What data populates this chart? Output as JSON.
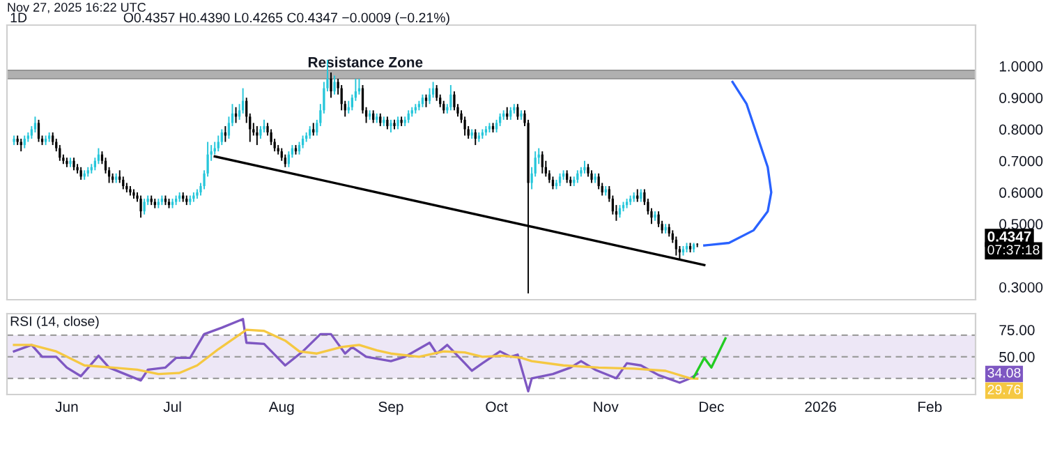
{
  "chart_data": [
    {
      "type": "candlestick",
      "title": "1D",
      "subtitle": "O0.4357 H0.4390 L0.4265 C0.4347 −0.0009 (−0.21%)",
      "annotations": [
        "Nov 27, 2025 16:22 UTC",
        "0.4347",
        "07:37:18"
      ],
      "x": [
        "2025-05-17",
        "2025-05-18",
        "2025-05-19",
        "2025-05-20",
        "2025-05-21",
        "2025-05-22",
        "2025-05-23",
        "2025-05-24",
        "2025-05-25",
        "2025-05-26",
        "2025-05-27",
        "2025-05-28",
        "2025-05-29",
        "2025-05-30",
        "2025-05-31",
        "2025-06-01",
        "2025-06-02",
        "2025-06-03",
        "2025-06-04",
        "2025-06-05",
        "2025-06-06",
        "2025-06-07",
        "2025-06-08",
        "2025-06-09",
        "2025-06-10",
        "2025-06-11",
        "2025-06-12",
        "2025-06-13",
        "2025-06-14",
        "2025-06-15",
        "2025-06-16",
        "2025-06-17",
        "2025-06-18",
        "2025-06-19",
        "2025-06-20",
        "2025-06-21",
        "2025-06-22",
        "2025-06-23",
        "2025-06-24",
        "2025-06-25",
        "2025-06-26",
        "2025-06-27",
        "2025-06-28",
        "2025-06-29",
        "2025-06-30",
        "2025-07-01",
        "2025-07-02",
        "2025-07-03",
        "2025-07-04",
        "2025-07-05",
        "2025-07-06",
        "2025-07-07",
        "2025-07-08",
        "2025-07-09",
        "2025-07-10",
        "2025-07-11",
        "2025-07-12",
        "2025-07-13",
        "2025-07-14",
        "2025-07-15",
        "2025-07-16",
        "2025-07-17",
        "2025-07-18",
        "2025-07-19",
        "2025-07-20",
        "2025-07-21",
        "2025-07-22",
        "2025-07-23",
        "2025-07-24",
        "2025-07-25",
        "2025-07-26",
        "2025-07-27",
        "2025-07-28",
        "2025-07-29",
        "2025-07-30",
        "2025-07-31",
        "2025-08-01",
        "2025-08-02",
        "2025-08-03",
        "2025-08-04",
        "2025-08-05",
        "2025-08-06",
        "2025-08-07",
        "2025-08-08",
        "2025-08-09",
        "2025-08-10",
        "2025-08-11",
        "2025-08-12",
        "2025-08-13",
        "2025-08-14",
        "2025-08-15",
        "2025-08-16",
        "2025-08-17",
        "2025-08-18",
        "2025-08-19",
        "2025-08-20",
        "2025-08-21",
        "2025-08-22",
        "2025-08-23",
        "2025-08-24",
        "2025-08-25",
        "2025-08-26",
        "2025-08-27",
        "2025-08-28",
        "2025-08-29",
        "2025-08-30",
        "2025-08-31",
        "2025-09-01",
        "2025-09-02",
        "2025-09-03",
        "2025-09-04",
        "2025-09-05",
        "2025-09-06",
        "2025-09-07",
        "2025-09-08",
        "2025-09-09",
        "2025-09-10",
        "2025-09-11",
        "2025-09-12",
        "2025-09-13",
        "2025-09-14",
        "2025-09-15",
        "2025-09-16",
        "2025-09-17",
        "2025-09-18",
        "2025-09-19",
        "2025-09-20",
        "2025-09-21",
        "2025-09-22",
        "2025-09-23",
        "2025-09-24",
        "2025-09-25",
        "2025-09-26",
        "2025-09-27",
        "2025-09-28",
        "2025-09-29",
        "2025-09-30",
        "2025-10-01",
        "2025-10-02",
        "2025-10-03",
        "2025-10-04",
        "2025-10-05",
        "2025-10-06",
        "2025-10-07",
        "2025-10-08",
        "2025-10-09",
        "2025-10-10",
        "2025-10-11",
        "2025-10-12",
        "2025-10-13",
        "2025-10-14",
        "2025-10-15",
        "2025-10-16",
        "2025-10-17",
        "2025-10-18",
        "2025-10-19",
        "2025-10-20",
        "2025-10-21",
        "2025-10-22",
        "2025-10-23",
        "2025-10-24",
        "2025-10-25",
        "2025-10-26",
        "2025-10-27",
        "2025-10-28",
        "2025-10-29",
        "2025-10-30",
        "2025-10-31",
        "2025-11-01",
        "2025-11-02",
        "2025-11-03",
        "2025-11-04",
        "2025-11-05",
        "2025-11-06",
        "2025-11-07",
        "2025-11-08",
        "2025-11-09",
        "2025-11-10",
        "2025-11-11",
        "2025-11-12",
        "2025-11-13",
        "2025-11-14",
        "2025-11-15",
        "2025-11-16",
        "2025-11-17",
        "2025-11-18",
        "2025-11-19",
        "2025-11-20",
        "2025-11-21",
        "2025-11-22",
        "2025-11-23",
        "2025-11-24",
        "2025-11-25",
        "2025-11-26",
        "2025-11-27"
      ],
      "ohlc": [
        [
          0.76,
          0.78,
          0.75,
          0.77
        ],
        [
          0.77,
          0.78,
          0.75,
          0.76
        ],
        [
          0.76,
          0.77,
          0.73,
          0.75
        ],
        [
          0.75,
          0.78,
          0.74,
          0.77
        ],
        [
          0.77,
          0.79,
          0.76,
          0.78
        ],
        [
          0.78,
          0.81,
          0.77,
          0.8
        ],
        [
          0.8,
          0.84,
          0.79,
          0.82
        ],
        [
          0.82,
          0.83,
          0.76,
          0.77
        ],
        [
          0.77,
          0.78,
          0.75,
          0.76
        ],
        [
          0.76,
          0.78,
          0.75,
          0.77
        ],
        [
          0.77,
          0.79,
          0.76,
          0.78
        ],
        [
          0.78,
          0.79,
          0.75,
          0.76
        ],
        [
          0.76,
          0.77,
          0.73,
          0.74
        ],
        [
          0.74,
          0.75,
          0.7,
          0.71
        ],
        [
          0.71,
          0.72,
          0.69,
          0.7
        ],
        [
          0.7,
          0.71,
          0.68,
          0.69
        ],
        [
          0.69,
          0.71,
          0.68,
          0.7
        ],
        [
          0.7,
          0.71,
          0.67,
          0.68
        ],
        [
          0.68,
          0.69,
          0.66,
          0.67
        ],
        [
          0.67,
          0.68,
          0.64,
          0.65
        ],
        [
          0.65,
          0.67,
          0.64,
          0.66
        ],
        [
          0.66,
          0.68,
          0.65,
          0.67
        ],
        [
          0.67,
          0.69,
          0.66,
          0.68
        ],
        [
          0.68,
          0.71,
          0.67,
          0.7
        ],
        [
          0.7,
          0.74,
          0.69,
          0.72
        ],
        [
          0.72,
          0.73,
          0.69,
          0.7
        ],
        [
          0.7,
          0.71,
          0.66,
          0.67
        ],
        [
          0.67,
          0.68,
          0.63,
          0.65
        ],
        [
          0.65,
          0.66,
          0.63,
          0.64
        ],
        [
          0.64,
          0.66,
          0.63,
          0.65
        ],
        [
          0.65,
          0.67,
          0.63,
          0.64
        ],
        [
          0.64,
          0.65,
          0.61,
          0.62
        ],
        [
          0.62,
          0.63,
          0.6,
          0.61
        ],
        [
          0.61,
          0.62,
          0.59,
          0.6
        ],
        [
          0.6,
          0.61,
          0.58,
          0.59
        ],
        [
          0.59,
          0.6,
          0.57,
          0.58
        ],
        [
          0.58,
          0.59,
          0.52,
          0.54
        ],
        [
          0.54,
          0.58,
          0.53,
          0.57
        ],
        [
          0.57,
          0.59,
          0.56,
          0.58
        ],
        [
          0.58,
          0.59,
          0.56,
          0.57
        ],
        [
          0.57,
          0.58,
          0.55,
          0.56
        ],
        [
          0.56,
          0.58,
          0.55,
          0.57
        ],
        [
          0.57,
          0.59,
          0.56,
          0.58
        ],
        [
          0.58,
          0.59,
          0.56,
          0.57
        ],
        [
          0.57,
          0.58,
          0.55,
          0.56
        ],
        [
          0.56,
          0.58,
          0.55,
          0.57
        ],
        [
          0.57,
          0.59,
          0.56,
          0.58
        ],
        [
          0.58,
          0.6,
          0.57,
          0.59
        ],
        [
          0.59,
          0.6,
          0.57,
          0.58
        ],
        [
          0.58,
          0.59,
          0.56,
          0.57
        ],
        [
          0.57,
          0.59,
          0.56,
          0.58
        ],
        [
          0.58,
          0.6,
          0.57,
          0.59
        ],
        [
          0.59,
          0.61,
          0.58,
          0.6
        ],
        [
          0.6,
          0.63,
          0.59,
          0.62
        ],
        [
          0.62,
          0.67,
          0.61,
          0.66
        ],
        [
          0.66,
          0.76,
          0.65,
          0.72
        ],
        [
          0.72,
          0.75,
          0.7,
          0.73
        ],
        [
          0.73,
          0.76,
          0.72,
          0.74
        ],
        [
          0.74,
          0.78,
          0.73,
          0.76
        ],
        [
          0.76,
          0.8,
          0.75,
          0.79
        ],
        [
          0.79,
          0.81,
          0.76,
          0.78
        ],
        [
          0.78,
          0.84,
          0.77,
          0.82
        ],
        [
          0.82,
          0.88,
          0.81,
          0.85
        ],
        [
          0.85,
          0.87,
          0.82,
          0.84
        ],
        [
          0.84,
          0.88,
          0.83,
          0.86
        ],
        [
          0.86,
          0.93,
          0.85,
          0.89
        ],
        [
          0.89,
          0.9,
          0.82,
          0.84
        ],
        [
          0.84,
          0.85,
          0.76,
          0.8
        ],
        [
          0.8,
          0.82,
          0.78,
          0.79
        ],
        [
          0.79,
          0.81,
          0.75,
          0.78
        ],
        [
          0.78,
          0.81,
          0.77,
          0.8
        ],
        [
          0.8,
          0.83,
          0.79,
          0.81
        ],
        [
          0.81,
          0.82,
          0.78,
          0.79
        ],
        [
          0.79,
          0.8,
          0.75,
          0.76
        ],
        [
          0.76,
          0.77,
          0.73,
          0.74
        ],
        [
          0.74,
          0.75,
          0.72,
          0.73
        ],
        [
          0.73,
          0.74,
          0.7,
          0.71
        ],
        [
          0.71,
          0.72,
          0.68,
          0.69
        ],
        [
          0.69,
          0.73,
          0.68,
          0.72
        ],
        [
          0.72,
          0.75,
          0.71,
          0.74
        ],
        [
          0.74,
          0.75,
          0.72,
          0.73
        ],
        [
          0.73,
          0.76,
          0.72,
          0.75
        ],
        [
          0.75,
          0.78,
          0.74,
          0.77
        ],
        [
          0.77,
          0.79,
          0.76,
          0.78
        ],
        [
          0.78,
          0.81,
          0.77,
          0.8
        ],
        [
          0.8,
          0.82,
          0.78,
          0.79
        ],
        [
          0.79,
          0.83,
          0.78,
          0.82
        ],
        [
          0.82,
          0.88,
          0.81,
          0.86
        ],
        [
          0.86,
          0.95,
          0.85,
          0.93
        ],
        [
          0.93,
          1.02,
          0.92,
          0.96
        ],
        [
          0.96,
          0.98,
          0.9,
          0.92
        ],
        [
          0.92,
          0.97,
          0.91,
          0.95
        ],
        [
          0.95,
          0.96,
          0.91,
          0.93
        ],
        [
          0.93,
          0.94,
          0.86,
          0.88
        ],
        [
          0.88,
          0.89,
          0.84,
          0.86
        ],
        [
          0.86,
          0.89,
          0.85,
          0.87
        ],
        [
          0.87,
          0.91,
          0.86,
          0.9
        ],
        [
          0.9,
          0.96,
          0.89,
          0.92
        ],
        [
          0.92,
          0.96,
          0.91,
          0.93
        ],
        [
          0.93,
          0.94,
          0.85,
          0.86
        ],
        [
          0.86,
          0.87,
          0.82,
          0.84
        ],
        [
          0.84,
          0.86,
          0.83,
          0.85
        ],
        [
          0.85,
          0.86,
          0.82,
          0.83
        ],
        [
          0.83,
          0.85,
          0.82,
          0.84
        ],
        [
          0.84,
          0.85,
          0.81,
          0.82
        ],
        [
          0.82,
          0.84,
          0.81,
          0.83
        ],
        [
          0.83,
          0.84,
          0.8,
          0.81
        ],
        [
          0.81,
          0.83,
          0.79,
          0.82
        ],
        [
          0.82,
          0.83,
          0.8,
          0.81
        ],
        [
          0.81,
          0.84,
          0.8,
          0.83
        ],
        [
          0.83,
          0.84,
          0.81,
          0.82
        ],
        [
          0.82,
          0.84,
          0.81,
          0.83
        ],
        [
          0.83,
          0.86,
          0.82,
          0.85
        ],
        [
          0.85,
          0.87,
          0.84,
          0.86
        ],
        [
          0.86,
          0.88,
          0.85,
          0.87
        ],
        [
          0.87,
          0.89,
          0.86,
          0.88
        ],
        [
          0.88,
          0.91,
          0.87,
          0.9
        ],
        [
          0.9,
          0.91,
          0.87,
          0.89
        ],
        [
          0.89,
          0.93,
          0.88,
          0.91
        ],
        [
          0.91,
          0.95,
          0.9,
          0.93
        ],
        [
          0.93,
          0.94,
          0.89,
          0.9
        ],
        [
          0.9,
          0.91,
          0.87,
          0.88
        ],
        [
          0.88,
          0.89,
          0.85,
          0.86
        ],
        [
          0.86,
          0.88,
          0.85,
          0.87
        ],
        [
          0.87,
          0.94,
          0.86,
          0.91
        ],
        [
          0.91,
          0.92,
          0.86,
          0.87
        ],
        [
          0.87,
          0.88,
          0.84,
          0.85
        ],
        [
          0.85,
          0.86,
          0.82,
          0.83
        ],
        [
          0.83,
          0.84,
          0.78,
          0.8
        ],
        [
          0.8,
          0.81,
          0.77,
          0.78
        ],
        [
          0.78,
          0.8,
          0.77,
          0.79
        ],
        [
          0.79,
          0.8,
          0.75,
          0.77
        ],
        [
          0.77,
          0.79,
          0.76,
          0.78
        ],
        [
          0.78,
          0.8,
          0.77,
          0.79
        ],
        [
          0.79,
          0.81,
          0.78,
          0.8
        ],
        [
          0.8,
          0.82,
          0.79,
          0.81
        ],
        [
          0.81,
          0.82,
          0.79,
          0.8
        ],
        [
          0.8,
          0.83,
          0.79,
          0.82
        ],
        [
          0.82,
          0.85,
          0.81,
          0.84
        ],
        [
          0.84,
          0.86,
          0.83,
          0.85
        ],
        [
          0.85,
          0.87,
          0.83,
          0.84
        ],
        [
          0.84,
          0.87,
          0.83,
          0.86
        ],
        [
          0.86,
          0.88,
          0.85,
          0.87
        ],
        [
          0.87,
          0.88,
          0.83,
          0.84
        ],
        [
          0.84,
          0.86,
          0.83,
          0.85
        ],
        [
          0.85,
          0.86,
          0.81,
          0.82
        ],
        [
          0.82,
          0.83,
          0.28,
          0.63
        ],
        [
          0.63,
          0.68,
          0.61,
          0.66
        ],
        [
          0.66,
          0.73,
          0.65,
          0.71
        ],
        [
          0.71,
          0.74,
          0.69,
          0.72
        ],
        [
          0.72,
          0.73,
          0.66,
          0.68
        ],
        [
          0.68,
          0.7,
          0.65,
          0.66
        ],
        [
          0.66,
          0.67,
          0.63,
          0.64
        ],
        [
          0.64,
          0.65,
          0.61,
          0.62
        ],
        [
          0.62,
          0.64,
          0.61,
          0.63
        ],
        [
          0.63,
          0.66,
          0.62,
          0.65
        ],
        [
          0.65,
          0.67,
          0.64,
          0.66
        ],
        [
          0.66,
          0.67,
          0.63,
          0.64
        ],
        [
          0.64,
          0.65,
          0.62,
          0.63
        ],
        [
          0.63,
          0.65,
          0.62,
          0.64
        ],
        [
          0.64,
          0.67,
          0.63,
          0.66
        ],
        [
          0.66,
          0.68,
          0.65,
          0.67
        ],
        [
          0.67,
          0.7,
          0.66,
          0.68
        ],
        [
          0.68,
          0.69,
          0.65,
          0.66
        ],
        [
          0.66,
          0.67,
          0.63,
          0.64
        ],
        [
          0.64,
          0.66,
          0.63,
          0.65
        ],
        [
          0.65,
          0.66,
          0.61,
          0.62
        ],
        [
          0.62,
          0.63,
          0.59,
          0.6
        ],
        [
          0.6,
          0.62,
          0.59,
          0.61
        ],
        [
          0.61,
          0.62,
          0.57,
          0.58
        ],
        [
          0.58,
          0.59,
          0.53,
          0.54
        ],
        [
          0.54,
          0.56,
          0.51,
          0.53
        ],
        [
          0.53,
          0.56,
          0.52,
          0.55
        ],
        [
          0.55,
          0.57,
          0.54,
          0.56
        ],
        [
          0.56,
          0.58,
          0.55,
          0.57
        ],
        [
          0.57,
          0.59,
          0.56,
          0.58
        ],
        [
          0.58,
          0.6,
          0.57,
          0.59
        ],
        [
          0.59,
          0.61,
          0.57,
          0.58
        ],
        [
          0.58,
          0.61,
          0.57,
          0.6
        ],
        [
          0.6,
          0.61,
          0.56,
          0.57
        ],
        [
          0.57,
          0.58,
          0.53,
          0.54
        ],
        [
          0.54,
          0.55,
          0.5,
          0.52
        ],
        [
          0.52,
          0.54,
          0.51,
          0.53
        ],
        [
          0.53,
          0.54,
          0.49,
          0.5
        ],
        [
          0.5,
          0.51,
          0.47,
          0.48
        ],
        [
          0.48,
          0.5,
          0.47,
          0.49
        ],
        [
          0.49,
          0.5,
          0.46,
          0.47
        ],
        [
          0.47,
          0.48,
          0.44,
          0.45
        ],
        [
          0.45,
          0.46,
          0.4,
          0.42
        ],
        [
          0.42,
          0.43,
          0.39,
          0.41
        ],
        [
          0.41,
          0.43,
          0.4,
          0.42
        ],
        [
          0.42,
          0.44,
          0.41,
          0.43
        ],
        [
          0.43,
          0.44,
          0.41,
          0.42
        ],
        [
          0.42,
          0.44,
          0.41,
          0.4357
        ],
        [
          0.4357,
          0.439,
          0.4265,
          0.4347
        ]
      ],
      "colors": [
        "#26c6da",
        "#000000",
        "#000000",
        "#26c6da",
        "#26c6da",
        "#26c6da",
        "#26c6da",
        "#000000",
        "#000000",
        "#26c6da",
        "#26c6da",
        "#000000",
        "#000000",
        "#000000",
        "#000000",
        "#000000",
        "#26c6da",
        "#000000",
        "#000000",
        "#000000",
        "#26c6da",
        "#26c6da",
        "#26c6da",
        "#26c6da",
        "#26c6da",
        "#000000",
        "#000000",
        "#000000",
        "#000000",
        "#26c6da",
        "#000000",
        "#000000",
        "#000000",
        "#000000",
        "#000000",
        "#000000",
        "#000000",
        "#26c6da",
        "#26c6da",
        "#000000",
        "#000000",
        "#26c6da",
        "#26c6da",
        "#000000",
        "#000000",
        "#26c6da",
        "#26c6da",
        "#26c6da",
        "#000000",
        "#000000",
        "#26c6da",
        "#26c6da",
        "#26c6da",
        "#26c6da",
        "#26c6da",
        "#26c6da",
        "#26c6da",
        "#26c6da",
        "#26c6da",
        "#26c6da",
        "#000000",
        "#26c6da",
        "#26c6da",
        "#000000",
        "#26c6da",
        "#26c6da",
        "#000000",
        "#000000",
        "#000000",
        "#000000",
        "#26c6da",
        "#26c6da",
        "#000000",
        "#000000",
        "#000000",
        "#000000",
        "#000000",
        "#000000",
        "#26c6da",
        "#26c6da",
        "#000000",
        "#26c6da",
        "#26c6da",
        "#26c6da",
        "#26c6da",
        "#000000",
        "#26c6da",
        "#26c6da",
        "#26c6da",
        "#26c6da",
        "#000000",
        "#26c6da",
        "#000000",
        "#000000",
        "#000000",
        "#26c6da",
        "#26c6da",
        "#26c6da",
        "#26c6da",
        "#000000",
        "#000000",
        "#26c6da",
        "#000000",
        "#26c6da",
        "#000000",
        "#26c6da",
        "#000000",
        "#26c6da",
        "#000000",
        "#26c6da",
        "#000000",
        "#26c6da",
        "#26c6da",
        "#26c6da",
        "#26c6da",
        "#26c6da",
        "#26c6da",
        "#000000",
        "#26c6da",
        "#26c6da",
        "#000000",
        "#000000",
        "#000000",
        "#26c6da",
        "#26c6da",
        "#000000",
        "#000000",
        "#000000",
        "#000000",
        "#000000",
        "#26c6da",
        "#000000",
        "#26c6da",
        "#26c6da",
        "#26c6da",
        "#26c6da",
        "#000000",
        "#26c6da",
        "#26c6da",
        "#26c6da",
        "#000000",
        "#26c6da",
        "#26c6da",
        "#000000",
        "#26c6da",
        "#000000",
        "#000000",
        "#26c6da",
        "#26c6da",
        "#26c6da",
        "#000000",
        "#000000",
        "#000000",
        "#000000",
        "#26c6da",
        "#26c6da",
        "#26c6da",
        "#000000",
        "#000000",
        "#26c6da",
        "#26c6da",
        "#26c6da",
        "#26c6da",
        "#000000",
        "#000000",
        "#26c6da",
        "#000000",
        "#000000",
        "#26c6da",
        "#000000",
        "#000000",
        "#000000",
        "#26c6da",
        "#26c6da",
        "#26c6da",
        "#26c6da",
        "#26c6da",
        "#000000",
        "#26c6da",
        "#000000",
        "#000000",
        "#000000",
        "#26c6da",
        "#000000",
        "#000000",
        "#26c6da",
        "#000000",
        "#000000",
        "#000000",
        "#000000",
        "#26c6da",
        "#26c6da",
        "#000000",
        "#26c6da",
        "#000000"
      ],
      "series": [
        {
          "type": "line",
          "color": "#000000",
          "x": [
            "2025-07-13",
            "2025-11-29"
          ],
          "values": [
            0.714,
            0.37
          ]
        },
        {
          "type": "line",
          "color": "#2962ff",
          "x": [
            "2025-11-29",
            "2025-12-06",
            "2025-12-13",
            "2025-12-17",
            "2025-12-18",
            "2025-12-17",
            "2025-12-14",
            "2025-12-11",
            "2025-12-07"
          ],
          "values": [
            0.432,
            0.44,
            0.48,
            0.54,
            0.6,
            0.68,
            0.78,
            0.88,
            0.95
          ]
        }
      ],
      "bands": [
        {
          "axis": "y",
          "from": 0.96,
          "to": 0.987,
          "label": "Resistance Zone",
          "color": "#b0b0b0"
        }
      ],
      "xlim": [
        "2025-05-15",
        "2026-02-14"
      ],
      "ylim": [
        0.26,
        1.13
      ],
      "yticks": [
        {
          "value": 0.3,
          "label": "0.3000"
        },
        {
          "value": 0.5,
          "label": "0.5000"
        },
        {
          "value": 0.6,
          "label": "0.6000"
        },
        {
          "value": 0.7,
          "label": "0.7000"
        },
        {
          "value": 0.8,
          "label": "0.8000"
        },
        {
          "value": 0.9,
          "label": "0.9000"
        },
        {
          "value": 1.0,
          "label": "1.0000"
        }
      ],
      "tick_labels": "y"
    },
    {
      "type": "line",
      "title": "RSI (14, close)",
      "annotations": [
        "34.08",
        "29.76"
      ],
      "series": [
        {
          "color": "#7e57c2",
          "x": [
            "2025-05-17",
            "2025-05-22",
            "2025-05-25",
            "2025-05-29",
            "2025-06-01",
            "2025-06-05",
            "2025-06-10",
            "2025-06-13",
            "2025-06-22",
            "2025-06-24",
            "2025-06-29",
            "2025-07-02",
            "2025-07-06",
            "2025-07-10",
            "2025-07-15",
            "2025-07-21",
            "2025-07-22",
            "2025-07-27",
            "2025-08-02",
            "2025-08-07",
            "2025-08-12",
            "2025-08-15",
            "2025-08-19",
            "2025-08-21",
            "2025-08-25",
            "2025-09-01",
            "2025-09-05",
            "2025-09-12",
            "2025-09-14",
            "2025-09-17",
            "2025-09-22",
            "2025-09-24",
            "2025-09-27",
            "2025-10-02",
            "2025-10-05",
            "2025-10-07",
            "2025-10-10",
            "2025-10-11",
            "2025-10-17",
            "2025-10-22",
            "2025-10-25",
            "2025-10-29",
            "2025-11-04",
            "2025-11-07",
            "2025-11-11",
            "2025-11-16",
            "2025-11-22",
            "2025-11-25",
            "2025-11-27"
          ],
          "values": [
            55,
            61,
            50,
            50,
            40,
            32,
            51,
            40,
            28,
            38,
            40,
            49,
            49,
            71,
            77,
            85,
            63,
            62,
            42,
            55,
            71,
            71,
            53,
            59,
            50,
            46,
            50,
            63,
            53,
            61,
            44,
            37,
            44,
            55,
            50,
            52,
            18,
            30,
            34,
            40,
            46,
            38,
            30,
            44,
            42,
            33,
            26,
            30,
            34.08
          ]
        },
        {
          "color": "#f5c842",
          "x": [
            "2025-05-17",
            "2025-05-22",
            "2025-05-29",
            "2025-06-06",
            "2025-06-14",
            "2025-06-21",
            "2025-06-27",
            "2025-07-03",
            "2025-07-08",
            "2025-07-14",
            "2025-07-22",
            "2025-07-27",
            "2025-08-02",
            "2025-08-06",
            "2025-08-11",
            "2025-08-18",
            "2025-08-23",
            "2025-08-28",
            "2025-09-01",
            "2025-09-09",
            "2025-09-16",
            "2025-09-22",
            "2025-09-27",
            "2025-10-03",
            "2025-10-08",
            "2025-10-11",
            "2025-10-20",
            "2025-10-30",
            "2025-11-09",
            "2025-11-18",
            "2025-11-25",
            "2025-11-27"
          ],
          "values": [
            61,
            61,
            55,
            42,
            40,
            38,
            34,
            35,
            42,
            57,
            75,
            74,
            65,
            55,
            53,
            59,
            61,
            56,
            53,
            50,
            55,
            54,
            50,
            51,
            49,
            46,
            42,
            40,
            39,
            37,
            30,
            29.76
          ]
        },
        {
          "color": "#22cc22",
          "x": [
            "2025-11-26",
            "2025-11-29",
            "2025-12-01",
            "2025-12-05"
          ],
          "values": [
            31,
            49,
            40,
            67
          ]
        }
      ],
      "bands": [
        {
          "axis": "y",
          "from": 30,
          "to": 70,
          "color": "#ede7f6"
        }
      ],
      "ref_lines": [
        {
          "axis": "y",
          "value": 70,
          "line_style": "dashed",
          "color": "#9e9e9e"
        },
        {
          "axis": "y",
          "value": 50,
          "line_style": "dashed",
          "color": "#9e9e9e"
        },
        {
          "axis": "y",
          "value": 30,
          "line_style": "dashed",
          "color": "#9e9e9e"
        }
      ],
      "xlim": [
        "2025-05-15",
        "2026-02-14"
      ],
      "xticks": [
        {
          "value": "2025-06-01",
          "label": "Jun"
        },
        {
          "value": "2025-07-01",
          "label": "Jul"
        },
        {
          "value": "2025-08-01",
          "label": "Aug"
        },
        {
          "value": "2025-09-01",
          "label": "Sep"
        },
        {
          "value": "2025-10-01",
          "label": "Oct"
        },
        {
          "value": "2025-11-01",
          "label": "Nov"
        },
        {
          "value": "2025-12-01",
          "label": "Dec"
        },
        {
          "value": "2026-01-01",
          "label": "2026"
        },
        {
          "value": "2026-02-01",
          "label": "Feb"
        }
      ],
      "ylim": [
        15,
        90
      ],
      "yticks": [
        {
          "value": 50,
          "label": "50.00"
        },
        {
          "value": 75,
          "label": "75.00"
        }
      ]
    }
  ]
}
